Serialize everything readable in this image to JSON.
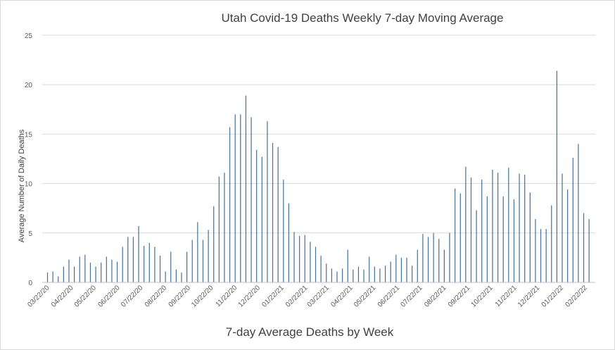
{
  "chart_data": {
    "type": "bar",
    "title": "Utah Covid-19 Deaths Weekly 7-day Moving Average",
    "xlabel": "7-day Average Deaths by Week",
    "ylabel": "Average Number of Daily Deaths",
    "ylim": [
      0,
      25
    ],
    "yticks": [
      0,
      5,
      10,
      15,
      20,
      25
    ],
    "grid": true,
    "legend": "none",
    "bar_color": "#41719c",
    "tick_labels": [
      "03/22/20",
      "04/22/20",
      "05/22/20",
      "06/22/20",
      "07/22/20",
      "08/22/20",
      "09/22/20",
      "10/22/20",
      "11/22/20",
      "12/22/20",
      "01/22/21",
      "02/22/21",
      "03/22/21",
      "04/22/21",
      "05/22/21",
      "06/22/21",
      "07/22/21",
      "08/22/21",
      "09/22/21",
      "10/22/21",
      "11/22/21",
      "12/22/21",
      "01/22/22",
      "02/22/22"
    ],
    "tick_positions": [
      0,
      4.43,
      8.71,
      13.14,
      17.43,
      21.86,
      26.29,
      30.57,
      35.0,
      39.29,
      43.71,
      48.14,
      52.14,
      56.57,
      60.86,
      65.29,
      69.57,
      74.0,
      78.43,
      82.71,
      87.14,
      91.43,
      95.86,
      100.29
    ],
    "values": [
      1.0,
      1.1,
      0.6,
      1.6,
      2.3,
      1.6,
      2.6,
      2.8,
      2.0,
      1.6,
      2.0,
      2.6,
      2.3,
      2.1,
      3.6,
      4.6,
      4.6,
      5.7,
      3.7,
      4.0,
      3.6,
      2.7,
      1.1,
      3.1,
      1.3,
      1.0,
      3.1,
      4.3,
      6.1,
      4.3,
      5.3,
      7.7,
      10.7,
      11.1,
      15.7,
      17.0,
      17.0,
      18.9,
      16.7,
      13.4,
      12.7,
      16.3,
      14.1,
      13.7,
      10.4,
      8.0,
      5.1,
      4.7,
      4.8,
      4.1,
      3.6,
      2.7,
      1.9,
      1.4,
      1.1,
      1.4,
      3.3,
      1.3,
      1.6,
      1.3,
      2.6,
      1.6,
      1.4,
      1.7,
      2.1,
      2.8,
      2.5,
      2.5,
      1.7,
      3.3,
      4.9,
      4.6,
      5.0,
      4.4,
      3.3,
      5.0,
      9.5,
      9.0,
      11.7,
      10.6,
      7.3,
      10.4,
      8.7,
      11.4,
      11.1,
      8.7,
      11.6,
      8.4,
      11.0,
      10.9,
      9.1,
      6.4,
      5.4,
      5.4,
      7.8,
      21.4,
      11.0,
      9.4,
      12.6,
      14.0,
      7.0,
      6.4
    ]
  }
}
